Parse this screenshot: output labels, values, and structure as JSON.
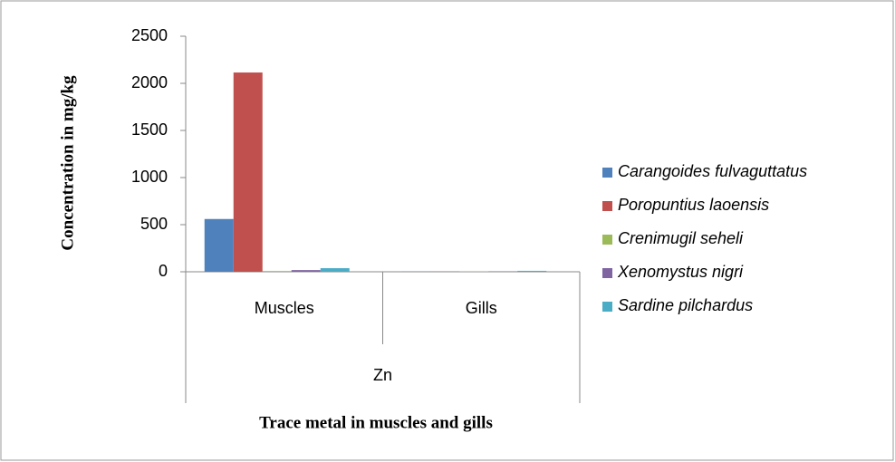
{
  "chart_data": {
    "type": "bar",
    "x_label": "Trace metal in muscles and gills",
    "y_label": "Concentration in mg/kg",
    "categories": [
      "Muscles",
      "Gills"
    ],
    "category_group": "Zn",
    "series": [
      {
        "name": "Carangoides fulvaguttatus",
        "color": "#4f81bd",
        "values": [
          560,
          2
        ]
      },
      {
        "name": "Poropuntius laoensis",
        "color": "#c0504d",
        "values": [
          2115,
          2
        ]
      },
      {
        "name": "Crenimugil seheli",
        "color": "#9bbb59",
        "values": [
          8,
          3
        ]
      },
      {
        "name": "Xenomystus nigri",
        "color": "#8064a2",
        "values": [
          18,
          4
        ]
      },
      {
        "name": "Sardine pilchardus",
        "color": "#4bacc6",
        "values": [
          38,
          10
        ]
      }
    ],
    "ylim": [
      0,
      2500
    ],
    "yticks": [
      0,
      500,
      1000,
      1500,
      2000,
      2500
    ],
    "legend": "right"
  }
}
